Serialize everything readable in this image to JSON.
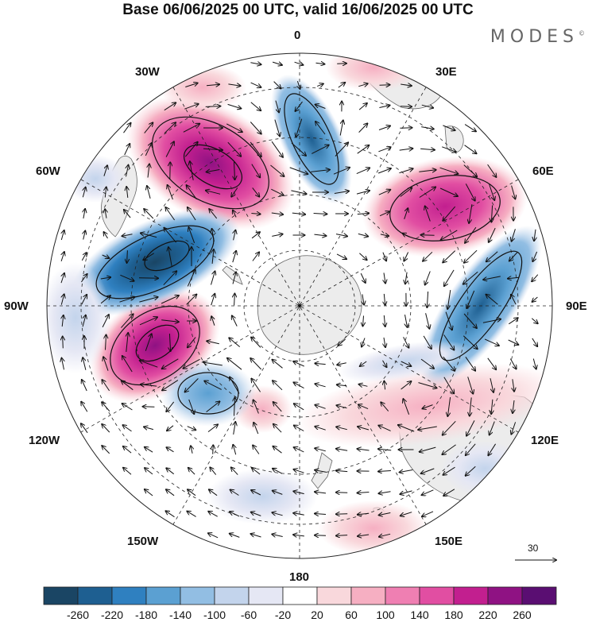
{
  "title": "Base 06/06/2025 00 UTC, valid 16/06/2025 00 UTC",
  "brand": "MODES",
  "brand_mark": "©",
  "longitudes": {
    "lon_0": "0",
    "lon_30e": "30E",
    "lon_60e": "60E",
    "lon_90e": "90E",
    "lon_120e": "120E",
    "lon_150e": "150E",
    "lon_180": "180",
    "lon_150w": "150W",
    "lon_120w": "120W",
    "lon_90w": "90W",
    "lon_60w": "60W",
    "lon_30w": "30W"
  },
  "vector_scale": "30",
  "colorbar": {
    "labels": [
      "-260",
      "-220",
      "-180",
      "-140",
      "-100",
      "-60",
      "-20",
      "20",
      "60",
      "100",
      "140",
      "180",
      "220",
      "260"
    ],
    "colors": [
      "#1a4564",
      "#1e5f91",
      "#2f80c0",
      "#5ba0d2",
      "#92bee3",
      "#c3d4ec",
      "#e5e7f4",
      "#ffffff",
      "#f9d8dc",
      "#f6afc2",
      "#ef7fb2",
      "#e14ea2",
      "#c21f8f",
      "#8f1283",
      "#5a0e72"
    ]
  },
  "colors": {
    "land": "#ececec",
    "outline": "#666666",
    "grid": "#222222"
  }
}
